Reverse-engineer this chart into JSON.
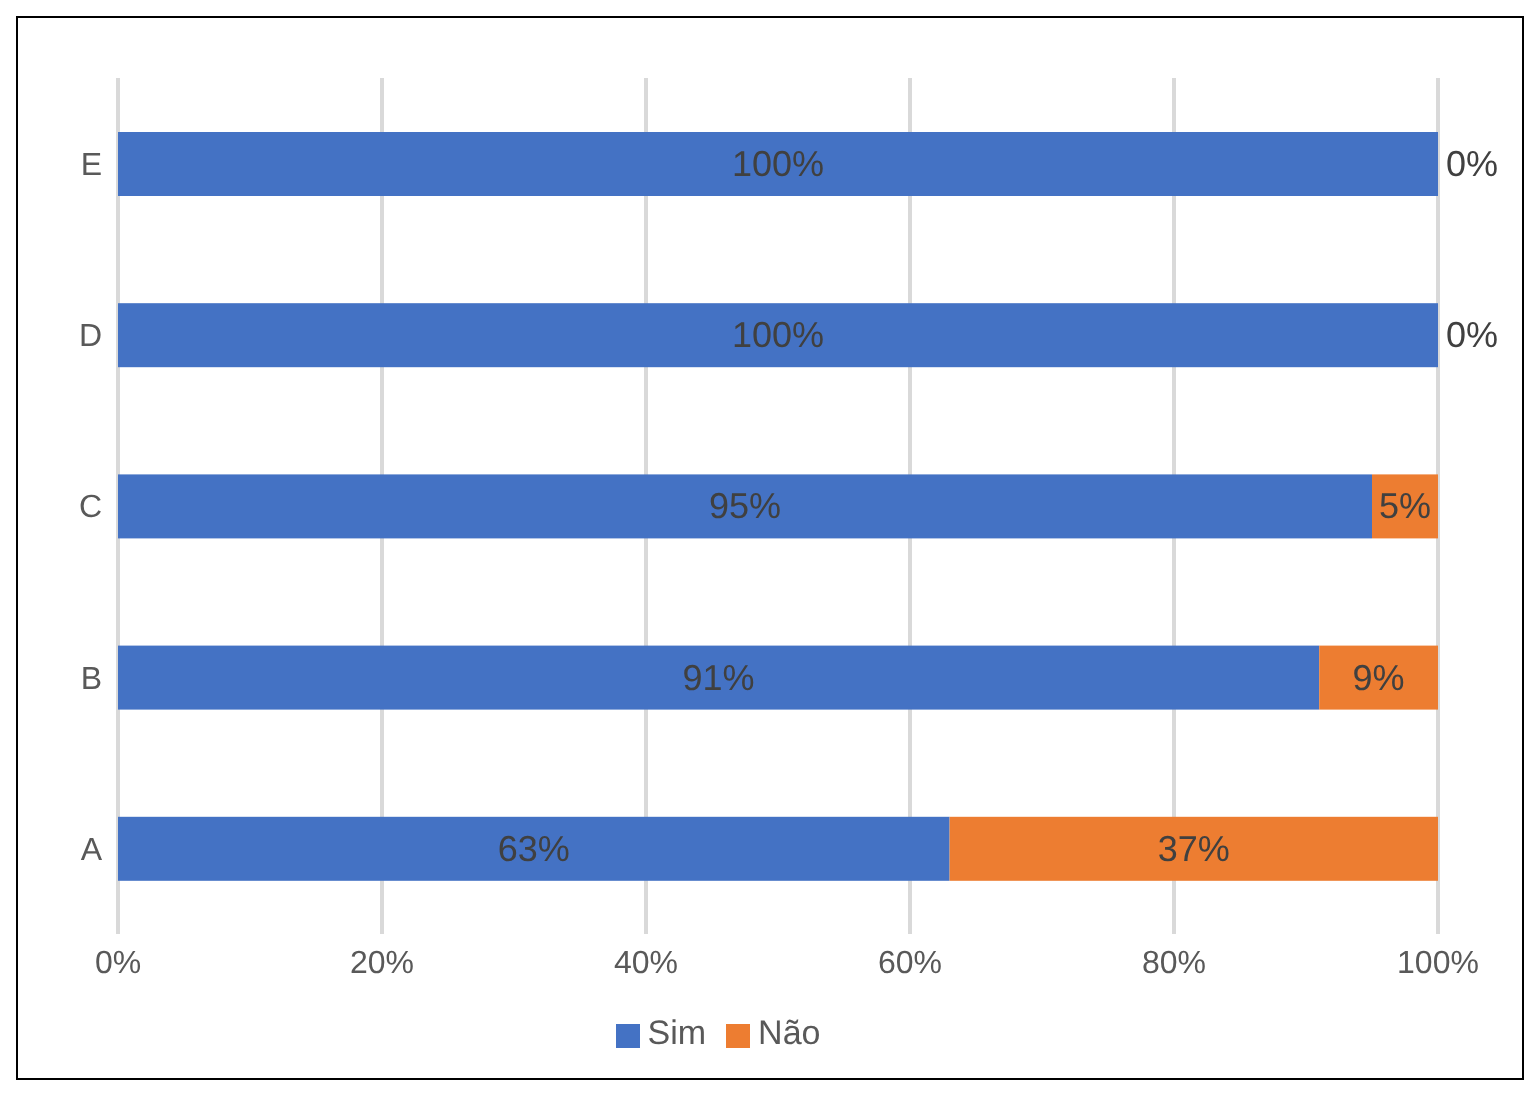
{
  "chart_data": {
    "type": "bar",
    "orientation": "horizontal",
    "stacked": true,
    "categories": [
      "E",
      "D",
      "C",
      "B",
      "A"
    ],
    "series": [
      {
        "name": "Sim",
        "color": "#4472c4",
        "values": [
          100,
          100,
          95,
          91,
          63
        ],
        "value_labels": [
          "100%",
          "100%",
          "95%",
          "91%",
          "63%"
        ]
      },
      {
        "name": "Não",
        "color": "#ed7d31",
        "values": [
          0,
          0,
          5,
          9,
          37
        ],
        "value_labels": [
          "0%",
          "0%",
          "5%",
          "9%",
          "37%"
        ]
      }
    ],
    "xlim": [
      0,
      100
    ],
    "xticks": [
      {
        "value": 0,
        "label": "0%"
      },
      {
        "value": 20,
        "label": "20%"
      },
      {
        "value": 40,
        "label": "40%"
      },
      {
        "value": 60,
        "label": "60%"
      },
      {
        "value": 80,
        "label": "80%"
      },
      {
        "value": 100,
        "label": "100%"
      }
    ],
    "grid": "x",
    "legend": "bottom"
  }
}
